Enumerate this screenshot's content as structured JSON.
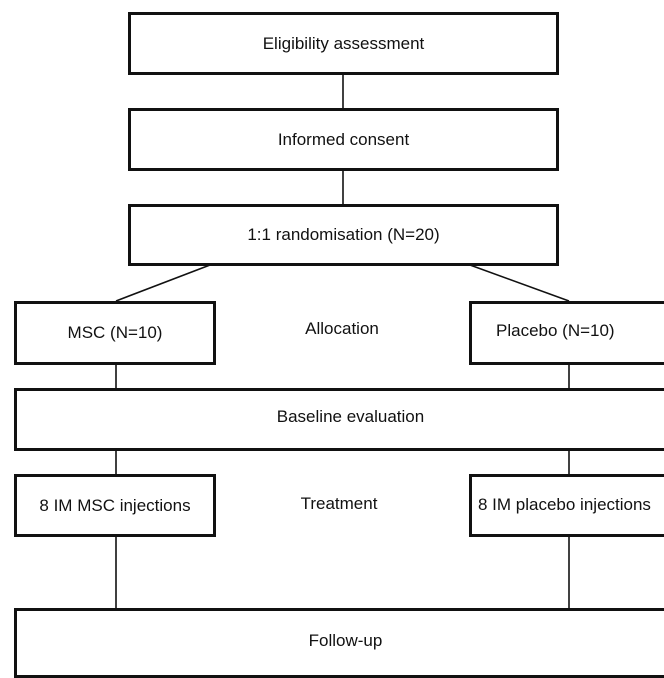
{
  "flowchart": {
    "eligibility": "Eligibility assessment",
    "consent": "Informed consent",
    "randomisation": "1:1 randomisation (N=20)",
    "allocation_label": "Allocation",
    "msc_arm": "MSC (N=10)",
    "placebo_arm": "Placebo (N=10)",
    "baseline": "Baseline evaluation",
    "treatment_label": "Treatment",
    "msc_treatment": "8 IM MSC injections",
    "placebo_treatment": "8 IM placebo injections",
    "followup": "Follow-up"
  },
  "colors": {
    "stroke": "#111111",
    "background": "#ffffff"
  }
}
